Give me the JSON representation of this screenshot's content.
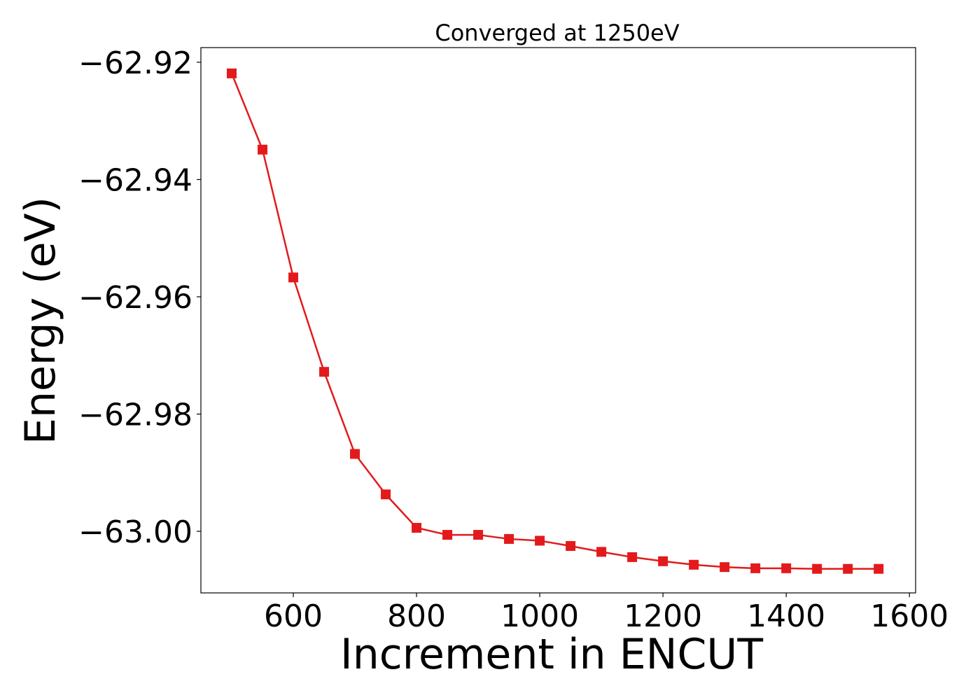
{
  "chart_data": {
    "type": "line",
    "title": "Converged at 1250eV",
    "xlabel": "Increment in ENCUT",
    "ylabel": "Energy (eV)",
    "xlim": [
      450,
      1610
    ],
    "ylim": [
      -63.0105,
      -62.9175
    ],
    "xticks": [
      600,
      800,
      1000,
      1200,
      1400,
      1600
    ],
    "xtick_labels": [
      "600",
      "800",
      "1000",
      "1200",
      "1400",
      "1600"
    ],
    "yticks": [
      -62.92,
      -62.94,
      -62.96,
      -62.98,
      -63.0
    ],
    "ytick_labels": [
      "−62.92",
      "−62.94",
      "−62.96",
      "−62.98",
      "−63.00"
    ],
    "grid": false,
    "series": [
      {
        "color": "#e31a1c",
        "marker": "square",
        "x": [
          500,
          550,
          600,
          650,
          700,
          750,
          800,
          850,
          900,
          950,
          1000,
          1050,
          1100,
          1150,
          1200,
          1250,
          1300,
          1350,
          1400,
          1450,
          1500,
          1550
        ],
        "y": [
          -62.9219,
          -62.9349,
          -62.9567,
          -62.9728,
          -62.9868,
          -62.9937,
          -62.9994,
          -63.0006,
          -63.0006,
          -63.0013,
          -63.0016,
          -63.0025,
          -63.0035,
          -63.0044,
          -63.0051,
          -63.0057,
          -63.0061,
          -63.0063,
          -63.0063,
          -63.0064,
          -63.0064,
          -63.0064
        ]
      }
    ]
  }
}
